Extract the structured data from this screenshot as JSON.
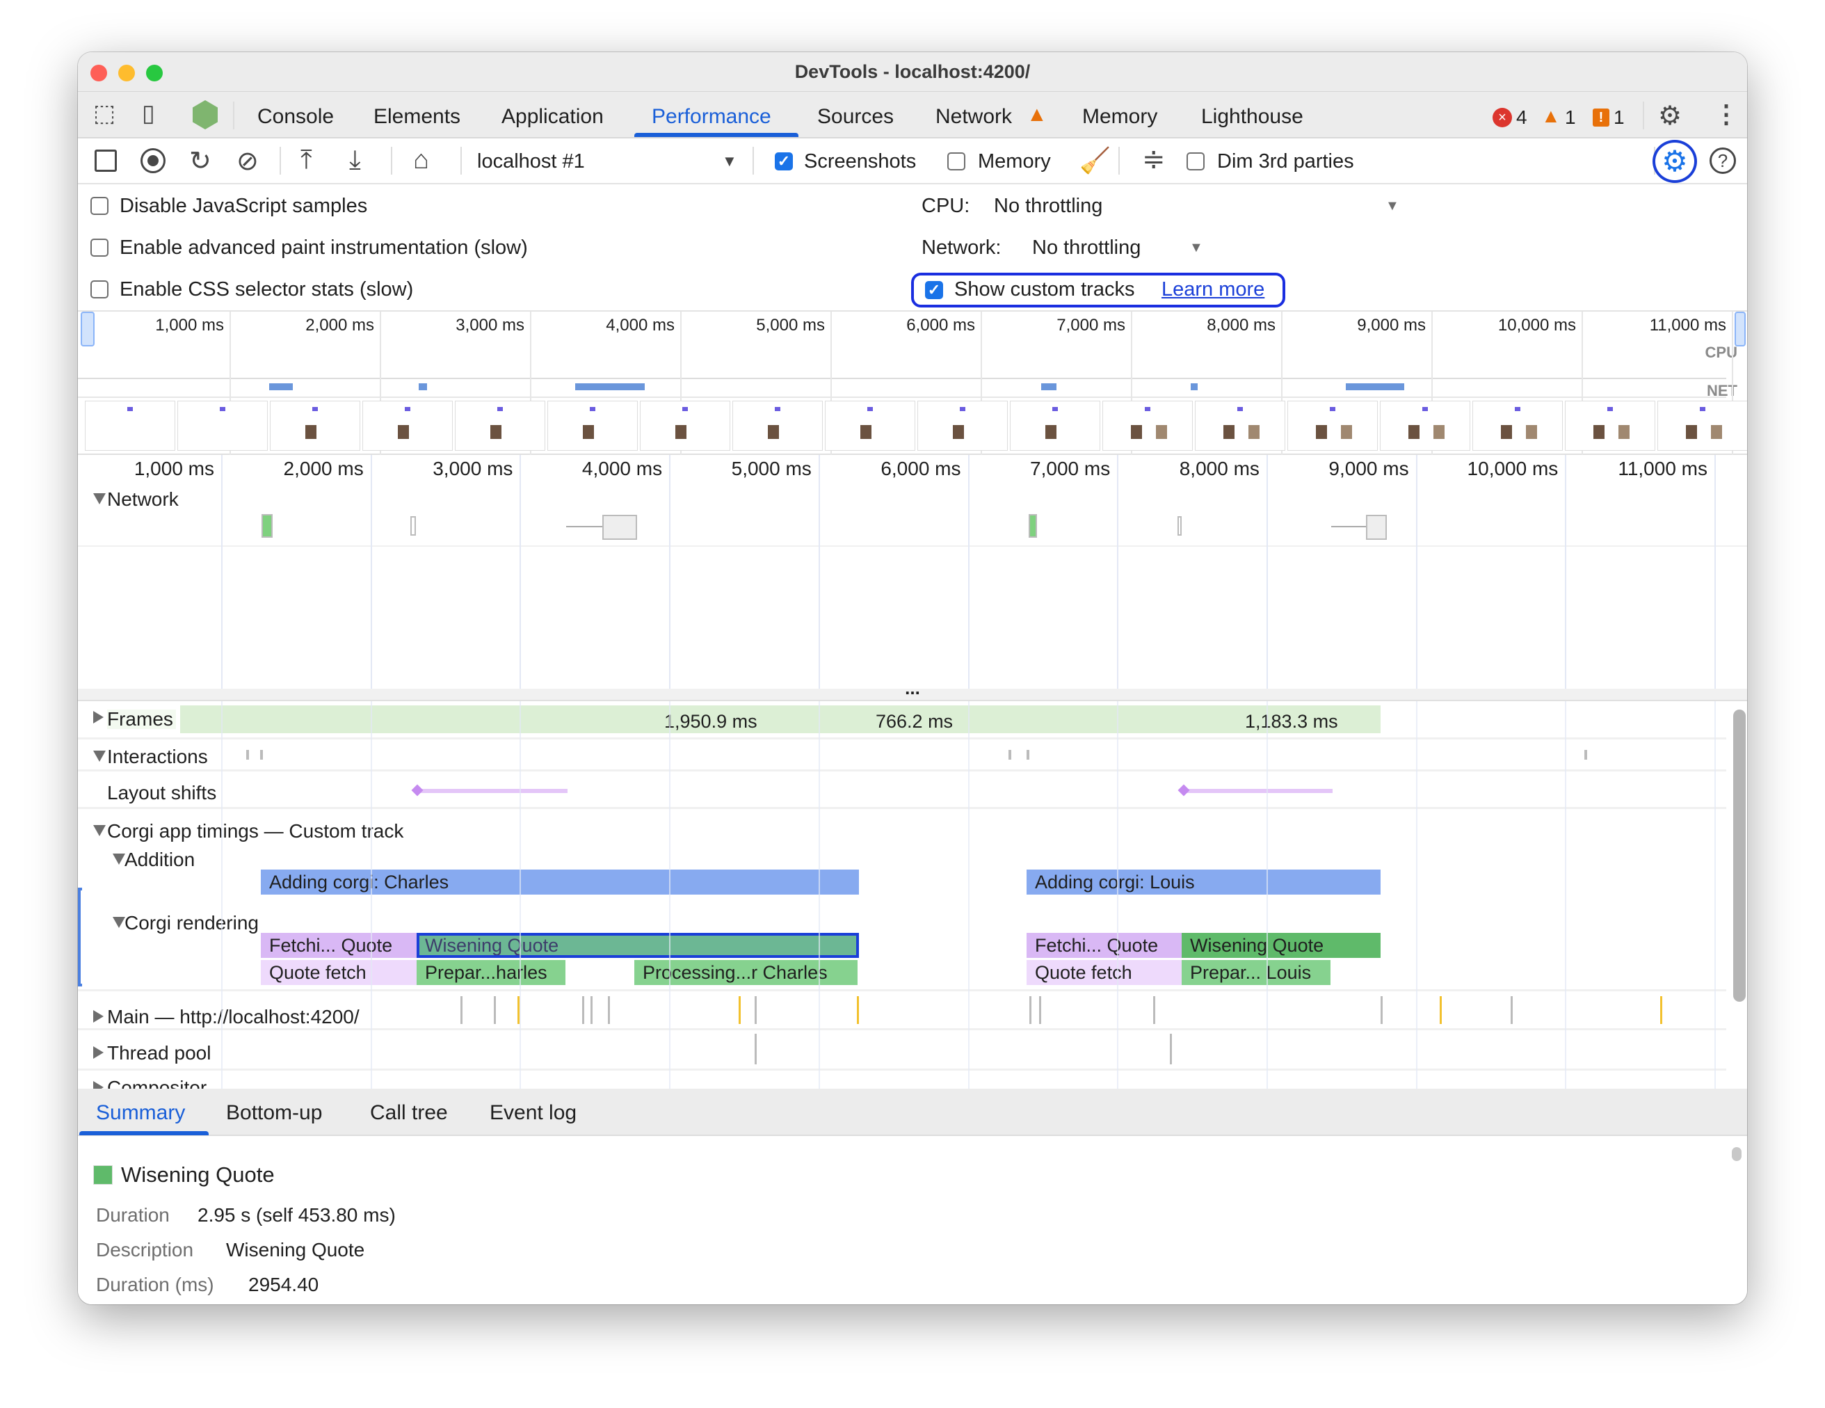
{
  "window": {
    "title": "DevTools - localhost:4200/"
  },
  "tabs": [
    {
      "label": "Console"
    },
    {
      "label": "Elements"
    },
    {
      "label": "Application"
    },
    {
      "label": "Performance",
      "active": true
    },
    {
      "label": "Sources"
    },
    {
      "label": "Network",
      "icon": "warning-icon"
    },
    {
      "label": "Memory"
    },
    {
      "label": "Lighthouse"
    }
  ],
  "status": {
    "errors": "4",
    "warnings": "1",
    "issues": "1"
  },
  "toolbar": {
    "target": "localhost #1",
    "screenshots_label": "Screenshots",
    "screenshots_checked": true,
    "memory_label": "Memory",
    "memory_checked": false,
    "dim_label": "Dim 3rd parties",
    "dim_checked": false
  },
  "settings": {
    "disable_js": "Disable JavaScript samples",
    "adv_paint": "Enable advanced paint instrumentation (slow)",
    "css_stats": "Enable CSS selector stats (slow)",
    "cpu_label": "CPU:",
    "cpu_value": "No throttling",
    "network_label": "Network:",
    "network_value": "No throttling",
    "custom_tracks": "Show custom tracks",
    "custom_tracks_checked": true,
    "learn_more": "Learn more"
  },
  "overview": {
    "ticks": [
      "1,000 ms",
      "2,000 ms",
      "3,000 ms",
      "4,000 ms",
      "5,000 ms",
      "6,000 ms",
      "7,000 ms",
      "8,000 ms",
      "9,000 ms",
      "10,000 ms",
      "11,000 ms"
    ],
    "cpu_label": "CPU",
    "net_label": "NET"
  },
  "ruler": {
    "ticks": [
      "1,000 ms",
      "2,000 ms",
      "3,000 ms",
      "4,000 ms",
      "5,000 ms",
      "6,000 ms",
      "7,000 ms",
      "8,000 ms",
      "9,000 ms",
      "10,000 ms",
      "11,000 ms"
    ]
  },
  "tracks": {
    "network": "Network",
    "divider": "...",
    "frames": "Frames",
    "frame_labels": [
      "1,950.9 ms",
      "766.2 ms",
      "1,183.3 ms"
    ],
    "interactions": "Interactions",
    "layout_shifts": "Layout shifts",
    "custom": "Corgi app timings — Custom track",
    "addition": "Addition",
    "addition_bars": [
      "Adding corgi: Charles",
      "Adding corgi: Louis"
    ],
    "rendering": "Corgi rendering",
    "rendering_bars": [
      "Fetchi... Quote",
      "Wisening Quote",
      "Quote fetch",
      "Prepar...harles",
      "Processing...r Charles",
      "Fetchi... Quote",
      "Wisening Quote",
      "Quote fetch",
      "Prepar... Louis"
    ],
    "main": "Main — http://localhost:4200/",
    "thread_pool": "Thread pool",
    "compositor": "Compositor"
  },
  "colors": {
    "accent": "#1a5fd8",
    "addition": "#87aaf0",
    "fetch": "#d9b8f5",
    "fetch_light": "#eedafc",
    "green": "#5fba6a",
    "green_light": "#86d28f",
    "selected": "#6cb794",
    "frames": "#dcefd5"
  },
  "bottom": {
    "tabs": [
      "Summary",
      "Bottom-up",
      "Call tree",
      "Event log"
    ],
    "title": "Wisening Quote",
    "rows": [
      {
        "label": "Duration",
        "value": "2.95 s (self 453.80 ms)"
      },
      {
        "label": "Description",
        "value": "Wisening Quote"
      },
      {
        "label": "Duration (ms)",
        "value": "2954.40"
      }
    ]
  }
}
